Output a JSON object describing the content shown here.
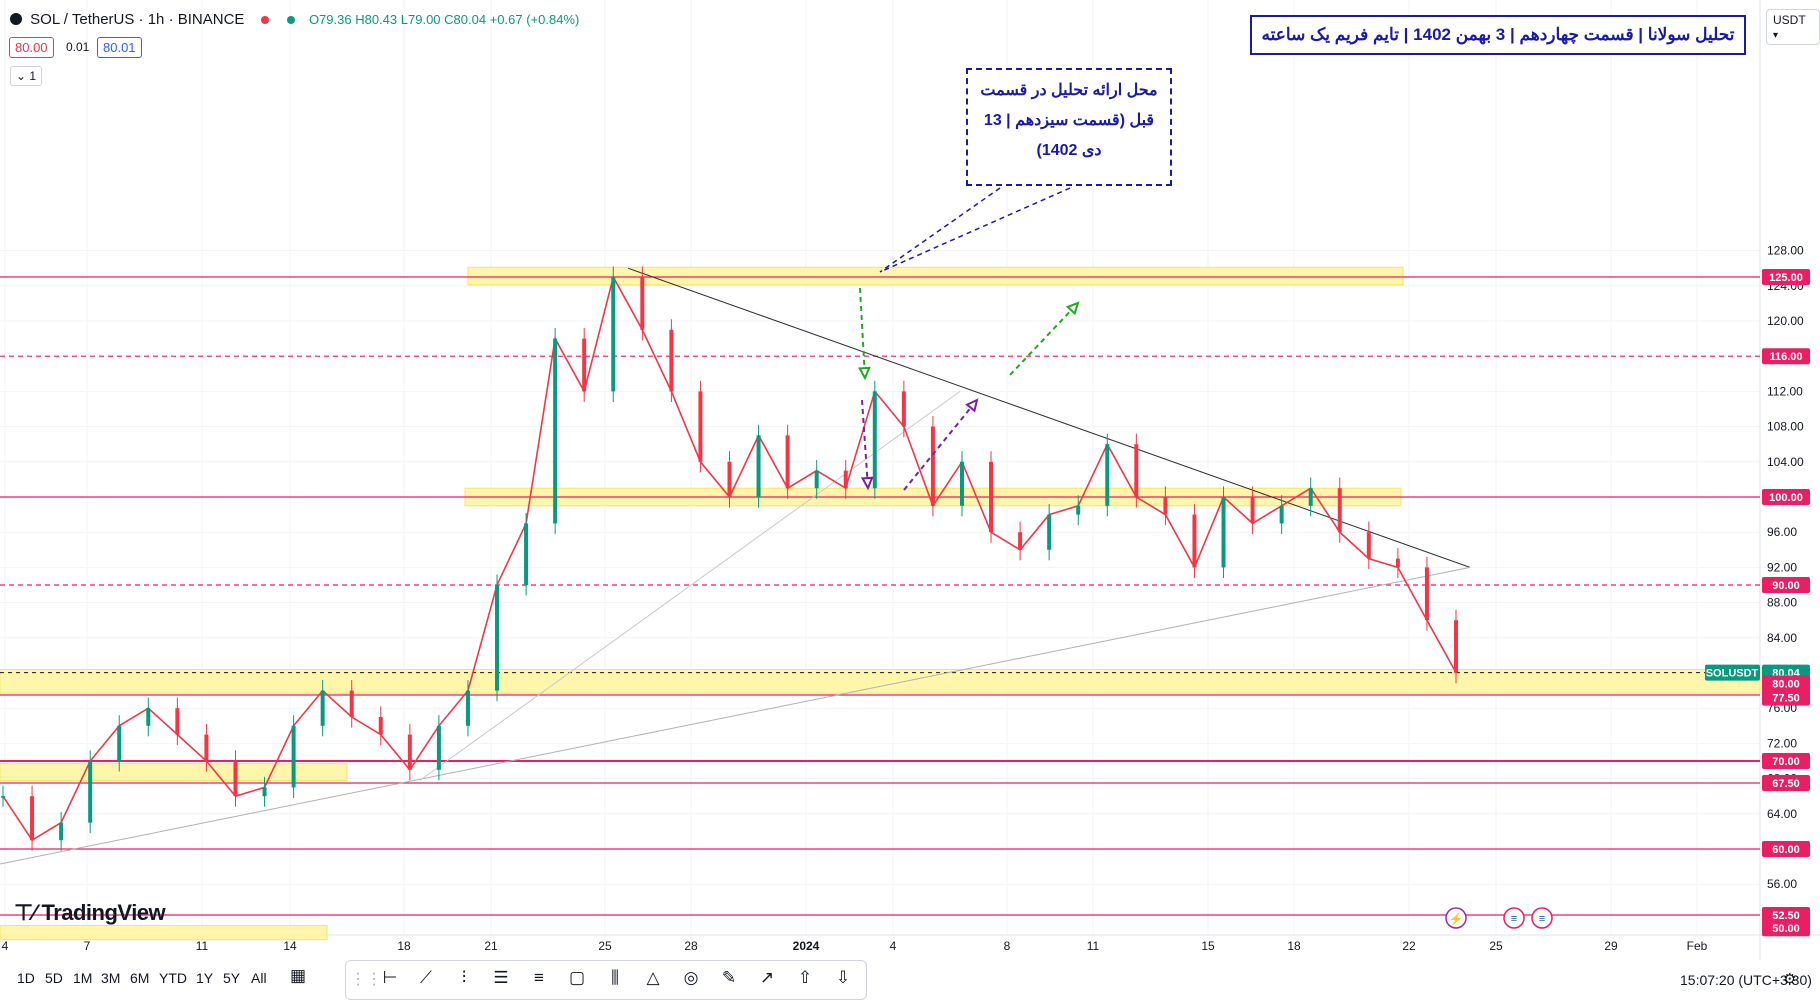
{
  "header": {
    "symbol": "SOL / TetherUS · 1h · BINANCE",
    "open": "O79.36",
    "high": "H80.43",
    "low": "L79.00",
    "close": "C80.04",
    "change": "+0.67 (+0.84%)",
    "bid": "80.00",
    "spread": "0.01",
    "ask": "80.01",
    "indicator_count": "1",
    "currency": "USDT"
  },
  "title_banner": "تحلیل سولانا | قسمت چهاردهم | 3 بهمن 1402 | تایم فریم یک ساعته",
  "note_lines": [
    "محل ارائه تحلیل در قسمت",
    "قبل (قسمت سیزدهم | 13",
    "دی 1402)"
  ],
  "timeframes": [
    "1D",
    "5D",
    "1M",
    "3M",
    "6M",
    "YTD",
    "1Y",
    "5Y",
    "All"
  ],
  "tools": [
    "cursor-icon",
    "line-icon",
    "trendline-icon",
    "vertical-line-icon",
    "fib-icon",
    "channel-icon",
    "rectangle-icon",
    "bars-icon",
    "triangle-icon",
    "circle-icon",
    "brush-icon",
    "arrow-icon",
    "arrow-up-icon",
    "arrow-down-icon"
  ],
  "clock": "15:07:20 (UTC+3:30)",
  "brand": "TradingView",
  "colors": {
    "accent_red": "#e91e63",
    "zone_yellow": "#fff176",
    "bull": "#089981",
    "bear": "#f23645",
    "note_blue": "#1a1aa8",
    "green_arrow": "#22a722",
    "purple_arrow": "#7b1fa2"
  },
  "chart_data": {
    "type": "line",
    "title": "",
    "xlabel": "",
    "ylabel": "",
    "ylim": [
      50,
      130
    ],
    "y_ticks": [
      56,
      60,
      64,
      68,
      72,
      76,
      80,
      84,
      88,
      92,
      96,
      100,
      104,
      108,
      112,
      116,
      120,
      124,
      128
    ],
    "x_ticks": [
      "4",
      "7",
      "11",
      "14",
      "18",
      "21",
      "25",
      "28",
      "2024",
      "4",
      "8",
      "11",
      "15",
      "18",
      "22",
      "25",
      "29",
      "Feb"
    ],
    "grid": true,
    "series": [
      {
        "name": "SOLUSDT",
        "color": "#e91e63",
        "x": [
          "Jan 4",
          "Jan 5",
          "Jan 6",
          "Jan 7",
          "Jan 8",
          "Jan 9",
          "Jan 10",
          "Jan 11",
          "Jan 12",
          "Jan 13",
          "Jan 14",
          "Jan 15",
          "Jan 16",
          "Jan 17",
          "Jan 18",
          "Jan 19",
          "Jan 20",
          "Jan 21",
          "Jan 22",
          "Jan 23",
          "Jan 24",
          "Jan 25",
          "Jan 26",
          "Jan 27",
          "Jan 28",
          "Jan 29",
          "Jan 30",
          "Jan 31",
          "Jan 1",
          "Jan 2",
          "Jan 3",
          "Jan 4",
          "Jan 5",
          "Jan 6",
          "Jan 7",
          "Jan 8",
          "Jan 9",
          "Jan 10",
          "Jan 11",
          "Jan 12",
          "Jan 13",
          "Jan 14",
          "Jan 15",
          "Jan 16",
          "Jan 17",
          "Jan 18",
          "Jan 19",
          "Jan 20",
          "Jan 21",
          "Jan 22",
          "Jan 23"
        ],
        "values": [
          66,
          61,
          63,
          70,
          74,
          76,
          73,
          70,
          66,
          67,
          74,
          78,
          75,
          73,
          69,
          74,
          78,
          90,
          97,
          118,
          112,
          125,
          119,
          112,
          104,
          100,
          107,
          101,
          103,
          101,
          112,
          108,
          99,
          104,
          96,
          94,
          98,
          99,
          106,
          100,
          98,
          92,
          100,
          97,
          99,
          101,
          96,
          93,
          92,
          86,
          80.04
        ]
      }
    ],
    "price_labels": [
      "125.00",
      "116.00",
      "100.00",
      "90.00",
      "80.04",
      "80.00",
      "77.50",
      "70.00",
      "67.50",
      "60.00",
      "52.50",
      "50.00"
    ],
    "last_price_tag": "SOLUSDT"
  }
}
